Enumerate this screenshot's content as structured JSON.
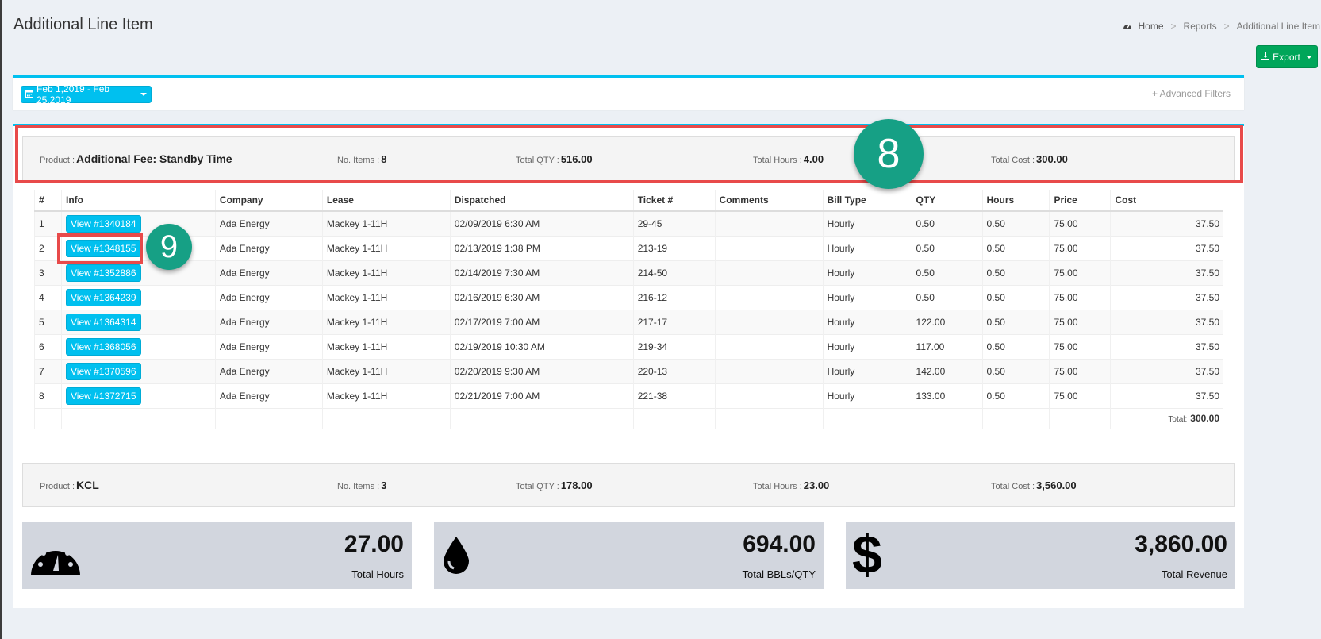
{
  "header": {
    "title": "Additional Line Item",
    "breadcrumb": [
      "Home",
      "Reports",
      "Additional Line Item"
    ]
  },
  "toolbar": {
    "export_label": "Export"
  },
  "filters": {
    "date_range": "Feb 1,2019 - Feb 25,2019",
    "advanced_label": "Advanced Filters"
  },
  "group1": {
    "product_label": "Product :",
    "product": "Additional Fee: Standby Time",
    "items_label": "No. Items :",
    "items": "8",
    "qty_label": "Total QTY :",
    "qty": "516.00",
    "hours_label": "Total Hours :",
    "hours": "4.00",
    "cost_label": "Total Cost :",
    "cost": "300.00"
  },
  "annotations": {
    "badge8": "8",
    "badge9": "9"
  },
  "table": {
    "headers": [
      "#",
      "Info",
      "Company",
      "Lease",
      "Dispatched",
      "Ticket #",
      "Comments",
      "Bill Type",
      "QTY",
      "Hours",
      "Price",
      "Cost"
    ],
    "rows": [
      {
        "n": "1",
        "info": "View #1340184",
        "company": "Ada Energy",
        "lease": "Mackey 1-11H",
        "dispatched": "02/09/2019 6:30 AM",
        "ticket": "29-45",
        "comments": "",
        "bill": "Hourly",
        "qty": "0.50",
        "hours": "0.50",
        "price": "75.00",
        "cost": "37.50"
      },
      {
        "n": "2",
        "info": "View #1348155",
        "company": "Ada Energy",
        "lease": "Mackey 1-11H",
        "dispatched": "02/13/2019 1:38 PM",
        "ticket": "213-19",
        "comments": "",
        "bill": "Hourly",
        "qty": "0.50",
        "hours": "0.50",
        "price": "75.00",
        "cost": "37.50"
      },
      {
        "n": "3",
        "info": "View #1352886",
        "company": "Ada Energy",
        "lease": "Mackey 1-11H",
        "dispatched": "02/14/2019 7:30 AM",
        "ticket": "214-50",
        "comments": "",
        "bill": "Hourly",
        "qty": "0.50",
        "hours": "0.50",
        "price": "75.00",
        "cost": "37.50"
      },
      {
        "n": "4",
        "info": "View #1364239",
        "company": "Ada Energy",
        "lease": "Mackey 1-11H",
        "dispatched": "02/16/2019 6:30 AM",
        "ticket": "216-12",
        "comments": "",
        "bill": "Hourly",
        "qty": "0.50",
        "hours": "0.50",
        "price": "75.00",
        "cost": "37.50"
      },
      {
        "n": "5",
        "info": "View #1364314",
        "company": "Ada Energy",
        "lease": "Mackey 1-11H",
        "dispatched": "02/17/2019 7:00 AM",
        "ticket": "217-17",
        "comments": "",
        "bill": "Hourly",
        "qty": "122.00",
        "hours": "0.50",
        "price": "75.00",
        "cost": "37.50"
      },
      {
        "n": "6",
        "info": "View #1368056",
        "company": "Ada Energy",
        "lease": "Mackey 1-11H",
        "dispatched": "02/19/2019 10:30 AM",
        "ticket": "219-34",
        "comments": "",
        "bill": "Hourly",
        "qty": "117.00",
        "hours": "0.50",
        "price": "75.00",
        "cost": "37.50"
      },
      {
        "n": "7",
        "info": "View #1370596",
        "company": "Ada Energy",
        "lease": "Mackey 1-11H",
        "dispatched": "02/20/2019 9:30 AM",
        "ticket": "220-13",
        "comments": "",
        "bill": "Hourly",
        "qty": "142.00",
        "hours": "0.50",
        "price": "75.00",
        "cost": "37.50"
      },
      {
        "n": "8",
        "info": "View #1372715",
        "company": "Ada Energy",
        "lease": "Mackey 1-11H",
        "dispatched": "02/21/2019 7:00 AM",
        "ticket": "221-38",
        "comments": "",
        "bill": "Hourly",
        "qty": "133.00",
        "hours": "0.50",
        "price": "75.00",
        "cost": "37.50"
      }
    ],
    "total_label": "Total:",
    "total_value": "300.00"
  },
  "group2": {
    "product_label": "Product :",
    "product": "KCL",
    "items_label": "No. Items :",
    "items": "3",
    "qty_label": "Total QTY :",
    "qty": "178.00",
    "hours_label": "Total Hours :",
    "hours": "23.00",
    "cost_label": "Total Cost :",
    "cost": "3,560.00"
  },
  "stats": [
    {
      "value": "27.00",
      "label": "Total Hours",
      "icon": "gauge-icon"
    },
    {
      "value": "694.00",
      "label": "Total BBLs/QTY",
      "icon": "droplet-icon"
    },
    {
      "value": "3,860.00",
      "label": "Total Revenue",
      "icon": "dollar-icon"
    }
  ],
  "colors": {
    "accent": "#00c0ef",
    "export": "#00a65a",
    "highlight": "#e84a4a",
    "badge": "#16a085"
  }
}
